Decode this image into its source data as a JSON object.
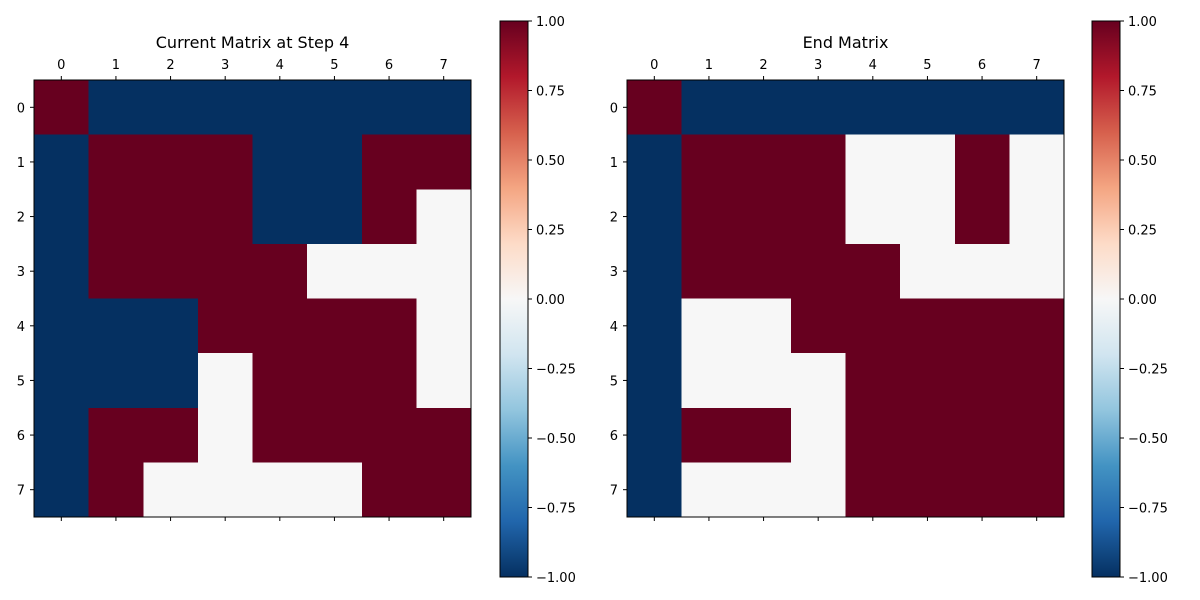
{
  "chart_data": [
    {
      "type": "heatmap",
      "title": "Current Matrix at Step 4",
      "x_ticks": [
        "0",
        "1",
        "2",
        "3",
        "4",
        "5",
        "6",
        "7"
      ],
      "y_ticks": [
        "0",
        "1",
        "2",
        "3",
        "4",
        "5",
        "6",
        "7"
      ],
      "xlabel": "",
      "ylabel": "",
      "values": [
        [
          1,
          -1,
          -1,
          -1,
          -1,
          -1,
          -1,
          -1
        ],
        [
          -1,
          1,
          1,
          1,
          -1,
          -1,
          1,
          1
        ],
        [
          -1,
          1,
          1,
          1,
          -1,
          -1,
          1,
          0
        ],
        [
          -1,
          1,
          1,
          1,
          1,
          0,
          0,
          0
        ],
        [
          -1,
          -1,
          -1,
          1,
          1,
          1,
          1,
          0
        ],
        [
          -1,
          -1,
          -1,
          0,
          1,
          1,
          1,
          0
        ],
        [
          -1,
          1,
          1,
          0,
          1,
          1,
          1,
          1
        ],
        [
          -1,
          1,
          0,
          0,
          0,
          0,
          1,
          1
        ]
      ],
      "colorbar": {
        "colormap": "RdBu_r",
        "vmin": -1.0,
        "vmax": 1.0,
        "ticks": [
          "1.00",
          "0.75",
          "0.50",
          "0.25",
          "0.00",
          "−0.25",
          "−0.50",
          "−0.75",
          "−1.00"
        ]
      },
      "grid": false
    },
    {
      "type": "heatmap",
      "title": "End Matrix",
      "x_ticks": [
        "0",
        "1",
        "2",
        "3",
        "4",
        "5",
        "6",
        "7"
      ],
      "y_ticks": [
        "0",
        "1",
        "2",
        "3",
        "4",
        "5",
        "6",
        "7"
      ],
      "xlabel": "",
      "ylabel": "",
      "values": [
        [
          1,
          -1,
          -1,
          -1,
          -1,
          -1,
          -1,
          -1
        ],
        [
          -1,
          1,
          1,
          1,
          0,
          0,
          1,
          0
        ],
        [
          -1,
          1,
          1,
          1,
          0,
          0,
          1,
          0
        ],
        [
          -1,
          1,
          1,
          1,
          1,
          0,
          0,
          0
        ],
        [
          -1,
          0,
          0,
          1,
          1,
          1,
          1,
          1
        ],
        [
          -1,
          0,
          0,
          0,
          1,
          1,
          1,
          1
        ],
        [
          -1,
          1,
          1,
          0,
          1,
          1,
          1,
          1
        ],
        [
          -1,
          0,
          0,
          0,
          1,
          1,
          1,
          1
        ]
      ],
      "colorbar": {
        "colormap": "RdBu_r",
        "vmin": -1.0,
        "vmax": 1.0,
        "ticks": [
          "1.00",
          "0.75",
          "0.50",
          "0.25",
          "0.00",
          "−0.25",
          "−0.50",
          "−0.75",
          "−1.00"
        ]
      },
      "grid": false
    }
  ]
}
